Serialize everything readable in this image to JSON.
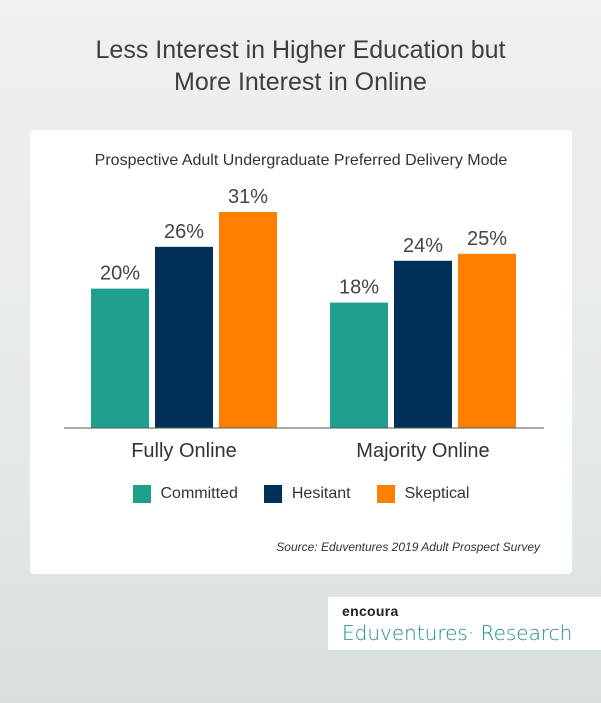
{
  "header": {
    "title_line1": "Less Interest in Higher Education but",
    "title_line2": "More Interest in Online"
  },
  "chart_data": {
    "type": "bar",
    "title": "Prospective Adult Undergraduate Preferred Delivery Mode",
    "categories": [
      "Fully Online",
      "Majority Online"
    ],
    "series": [
      {
        "name": "Committed",
        "values": [
          20,
          18
        ],
        "color": "#1fa08c"
      },
      {
        "name": "Hesitant",
        "values": [
          26,
          24
        ],
        "color": "#003057"
      },
      {
        "name": "Skeptical",
        "values": [
          31,
          25
        ],
        "color": "#ff7f00"
      }
    ],
    "value_suffix": "%",
    "ylim": [
      0,
      40
    ],
    "grid": false,
    "legend": "bottom"
  },
  "source": "Source: Eduventures 2019 Adult Prospect Survey",
  "brand": {
    "top": "encoura",
    "bottom": "Eduventures· Research"
  }
}
